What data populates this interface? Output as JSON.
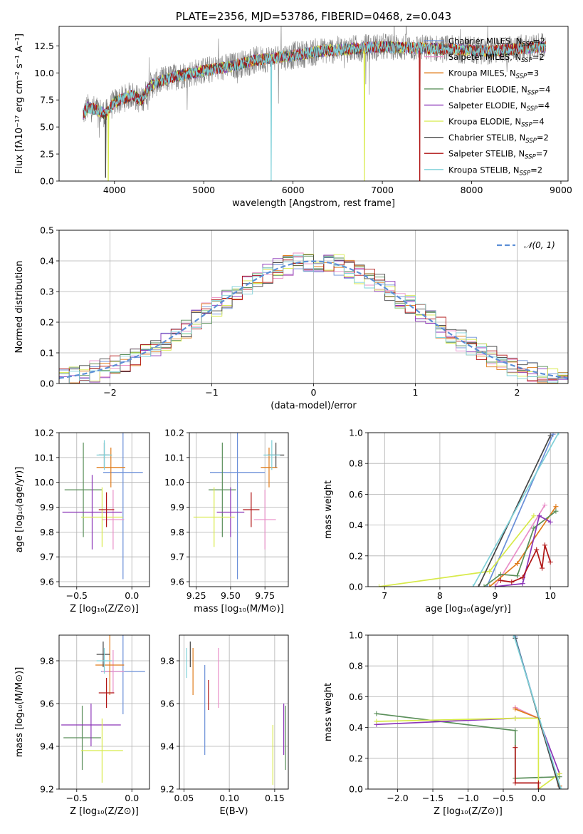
{
  "series_styles": [
    {
      "name": "Chabrier MILES",
      "nssp": "2",
      "color": "#6a8fd8"
    },
    {
      "name": "Salpeter MILES",
      "nssp": "2",
      "color": "#e98fc8"
    },
    {
      "name": "Kroupa MILES",
      "nssp": "3",
      "color": "#e07b1a"
    },
    {
      "name": "Chabrier ELODIE",
      "nssp": "4",
      "color": "#5a8f5a"
    },
    {
      "name": "Salpeter ELODIE",
      "nssp": "4",
      "color": "#8b35b8"
    },
    {
      "name": "Kroupa ELODIE",
      "nssp": "4",
      "color": "#d8ea4a"
    },
    {
      "name": "Chabrier STELIB",
      "nssp": "2",
      "color": "#444444"
    },
    {
      "name": "Salpeter STELIB",
      "nssp": "7",
      "color": "#b01515"
    },
    {
      "name": "Kroupa STELIB",
      "nssp": "2",
      "color": "#7ed0d8"
    }
  ],
  "chart_data": [
    {
      "type": "line",
      "id": "spectrum",
      "title": "PLATE=2356, MJD=53786, FIBERID=0468, z=0.043",
      "xlabel": "wavelength [Angstrom, rest frame]",
      "ylabel": "Flux [fλ10⁻¹⁷ erg cm⁻² s⁻¹ A⁻¹]",
      "xlim": [
        3380,
        9080
      ],
      "ylim": [
        0,
        14.3
      ],
      "xticks": [
        4000,
        5000,
        6000,
        7000,
        8000,
        9000
      ],
      "yticks": [
        0.0,
        2.5,
        5.0,
        7.5,
        10.0,
        12.5
      ],
      "grid": false,
      "legend": "top-right",
      "continuum": {
        "x": [
          3650,
          3700,
          3800,
          3900,
          4000,
          4100,
          4200,
          4300,
          4400,
          4500,
          4700,
          5000,
          5300,
          5600,
          6000,
          6300,
          6600,
          7000,
          7400,
          7800,
          8200,
          8600,
          8830
        ],
        "y": [
          6.2,
          6.8,
          6.6,
          6.2,
          7.3,
          7.6,
          8.0,
          7.4,
          8.8,
          9.2,
          9.7,
          10.2,
          10.6,
          11.2,
          11.6,
          12.0,
          12.2,
          12.4,
          12.3,
          12.2,
          12.0,
          12.3,
          12.4
        ]
      },
      "dips": [
        {
          "x": 5755,
          "y": 0,
          "series": 8
        },
        {
          "x": 6800,
          "y": 0,
          "series": 5
        },
        {
          "x": 7420,
          "y": 0,
          "series": 7
        },
        {
          "x": 3900,
          "y": 0.3,
          "series": 6
        },
        {
          "x": 3930,
          "y": 0.0,
          "series": 5
        }
      ]
    },
    {
      "type": "bar",
      "id": "residuals",
      "xlabel": "(data-model)/error",
      "ylabel": "Normed distribution",
      "xlim": [
        -2.5,
        2.5
      ],
      "ylim": [
        0,
        0.5
      ],
      "xticks": [
        -2,
        -1,
        0,
        1,
        2
      ],
      "yticks": [
        0.0,
        0.1,
        0.2,
        0.3,
        0.4,
        0.5
      ],
      "grid": true,
      "legend": "top-right",
      "legend_label": "𝒩(0, 1)",
      "bin_width": 0.1
    },
    {
      "type": "scatter",
      "id": "age-vs-Z",
      "xlabel": "Z [log₁₀(Z/Z⊙)]",
      "ylabel": "age  [log₁₀(age/yr)]",
      "xlim": [
        -0.66,
        0.16
      ],
      "ylim": [
        9.58,
        10.2
      ],
      "xticks": [
        -0.5,
        0.0
      ],
      "yticks": [
        9.6,
        9.7,
        9.8,
        9.9,
        10.0,
        10.1,
        10.2
      ],
      "points": [
        {
          "s": 0,
          "x": -0.08,
          "y": 10.04,
          "xerr": 0.18,
          "yerr": 0.43
        },
        {
          "s": 1,
          "x": -0.17,
          "y": 9.85,
          "xerr": 0.1,
          "yerr": 0.12
        },
        {
          "s": 2,
          "x": -0.19,
          "y": 10.06,
          "xerr": 0.13,
          "yerr": 0.08
        },
        {
          "s": 3,
          "x": -0.44,
          "y": 9.97,
          "xerr": 0.17,
          "yerr": 0.19
        },
        {
          "s": 4,
          "x": -0.36,
          "y": 9.88,
          "xerr": 0.27,
          "yerr": 0.15
        },
        {
          "s": 5,
          "x": -0.27,
          "y": 9.86,
          "xerr": 0.19,
          "yerr": 0.12
        },
        {
          "s": 6,
          "x": -0.25,
          "y": 10.11,
          "xerr": 0.05,
          "yerr": 0.05
        },
        {
          "s": 7,
          "x": -0.23,
          "y": 9.89,
          "xerr": 0.07,
          "yerr": 0.07
        },
        {
          "s": 8,
          "x": -0.25,
          "y": 10.11,
          "xerr": 0.07,
          "yerr": 0.06
        }
      ]
    },
    {
      "type": "scatter",
      "id": "age-vs-mass",
      "xlabel": "mass [log₁₀(M/M⊙)]",
      "ylabel": "",
      "xlim": [
        9.2,
        9.92
      ],
      "ylim": [
        9.58,
        10.2
      ],
      "xticks": [
        9.25,
        9.5,
        9.75
      ],
      "yticks": [
        9.6,
        9.7,
        9.8,
        9.9,
        10.0,
        10.1,
        10.2
      ],
      "points": [
        {
          "s": 0,
          "x": 9.55,
          "y": 10.04,
          "xerr": 0.2,
          "yerr": 0.43
        },
        {
          "s": 1,
          "x": 9.75,
          "y": 9.85,
          "xerr": 0.08,
          "yerr": 0.12
        },
        {
          "s": 2,
          "x": 9.78,
          "y": 10.06,
          "xerr": 0.06,
          "yerr": 0.08
        },
        {
          "s": 3,
          "x": 9.44,
          "y": 9.97,
          "xerr": 0.1,
          "yerr": 0.19
        },
        {
          "s": 4,
          "x": 9.5,
          "y": 9.88,
          "xerr": 0.1,
          "yerr": 0.1
        },
        {
          "s": 5,
          "x": 9.38,
          "y": 9.86,
          "xerr": 0.15,
          "yerr": 0.12
        },
        {
          "s": 6,
          "x": 9.83,
          "y": 10.11,
          "xerr": 0.06,
          "yerr": 0.05
        },
        {
          "s": 7,
          "x": 9.65,
          "y": 9.89,
          "xerr": 0.06,
          "yerr": 0.07
        },
        {
          "s": 8,
          "x": 9.8,
          "y": 10.11,
          "xerr": 0.06,
          "yerr": 0.06
        }
      ]
    },
    {
      "type": "line",
      "id": "weight-vs-age",
      "xlabel": "age  [log₁₀(age/yr)]",
      "ylabel": "mass weight",
      "xlim": [
        6.7,
        10.32
      ],
      "ylim": [
        0,
        1.0
      ],
      "xticks": [
        7,
        8,
        9,
        10
      ],
      "yticks": [
        0.0,
        0.2,
        0.4,
        0.6,
        0.8,
        1.0
      ],
      "grid": true,
      "lines": [
        {
          "s": 0,
          "x": [
            8.85,
            10.05
          ],
          "y": [
            0.0,
            0.99
          ]
        },
        {
          "s": 1,
          "x": [
            9.0,
            9.9
          ],
          "y": [
            0.0,
            0.53
          ]
        },
        {
          "s": 2,
          "x": [
            8.9,
            9.4,
            10.1
          ],
          "y": [
            0.0,
            0.15,
            0.52
          ]
        },
        {
          "s": 3,
          "x": [
            8.8,
            9.1,
            9.4,
            9.7,
            10.1
          ],
          "y": [
            0.0,
            0.08,
            0.07,
            0.38,
            0.49
          ]
        },
        {
          "s": 4,
          "x": [
            9.0,
            9.5,
            9.8,
            10.0
          ],
          "y": [
            0.0,
            0.02,
            0.46,
            0.42
          ]
        },
        {
          "s": 5,
          "x": [
            6.9,
            8.9,
            9.7
          ],
          "y": [
            0.0,
            0.1,
            0.46
          ]
        },
        {
          "s": 6,
          "x": [
            8.7,
            10.0
          ],
          "y": [
            0.0,
            0.98
          ]
        },
        {
          "s": 7,
          "x": [
            9.1,
            9.3,
            9.5,
            9.75,
            9.85,
            9.9,
            10.0
          ],
          "y": [
            0.04,
            0.03,
            0.06,
            0.24,
            0.12,
            0.27,
            0.16
          ]
        },
        {
          "s": 8,
          "x": [
            8.6,
            10.15
          ],
          "y": [
            0.0,
            1.0
          ]
        }
      ]
    },
    {
      "type": "scatter",
      "id": "mass-vs-Z",
      "xlabel": "Z [log₁₀(Z/Z⊙)]",
      "ylabel": "mass [log₁₀(M/M⊙)]",
      "xlim": [
        -0.66,
        0.16
      ],
      "ylim": [
        9.2,
        9.92
      ],
      "xticks": [
        -0.5,
        0.0
      ],
      "yticks": [
        9.2,
        9.4,
        9.6,
        9.8
      ],
      "points": [
        {
          "s": 0,
          "x": -0.08,
          "y": 9.75,
          "xerr": 0.2,
          "yerr": 0.2
        },
        {
          "s": 1,
          "x": -0.17,
          "y": 9.75,
          "xerr": 0.1,
          "yerr": 0.1
        },
        {
          "s": 2,
          "x": -0.2,
          "y": 9.78,
          "xerr": 0.13,
          "yerr": 0.14
        },
        {
          "s": 3,
          "x": -0.45,
          "y": 9.44,
          "xerr": 0.17,
          "yerr": 0.15
        },
        {
          "s": 4,
          "x": -0.37,
          "y": 9.5,
          "xerr": 0.27,
          "yerr": 0.1
        },
        {
          "s": 5,
          "x": -0.27,
          "y": 9.38,
          "xerr": 0.19,
          "yerr": 0.15
        },
        {
          "s": 6,
          "x": -0.26,
          "y": 9.83,
          "xerr": 0.06,
          "yerr": 0.06
        },
        {
          "s": 7,
          "x": -0.23,
          "y": 9.65,
          "xerr": 0.07,
          "yerr": 0.07
        },
        {
          "s": 8,
          "x": -0.25,
          "y": 9.8,
          "xerr": 0.07,
          "yerr": 0.06
        }
      ]
    },
    {
      "type": "scatter",
      "id": "mass-vs-ebv",
      "xlabel": "E(B-V)",
      "ylabel": "",
      "xlim": [
        0.045,
        0.165
      ],
      "ylim": [
        9.2,
        9.92
      ],
      "xticks": [
        0.05,
        0.1,
        0.15
      ],
      "yticks": [
        9.2,
        9.4,
        9.6,
        9.8
      ],
      "points": [
        {
          "s": 0,
          "x": 0.073,
          "y": 9.57,
          "xerr": 0.0,
          "yerr": 0.21
        },
        {
          "s": 1,
          "x": 0.088,
          "y": 9.72,
          "xerr": 0.0,
          "yerr": 0.14
        },
        {
          "s": 2,
          "x": 0.06,
          "y": 9.75,
          "xerr": 0.0,
          "yerr": 0.11
        },
        {
          "s": 3,
          "x": 0.162,
          "y": 9.44,
          "xerr": 0.0,
          "yerr": 0.15
        },
        {
          "s": 4,
          "x": 0.16,
          "y": 9.48,
          "xerr": 0.0,
          "yerr": 0.12
        },
        {
          "s": 5,
          "x": 0.148,
          "y": 9.36,
          "xerr": 0.0,
          "yerr": 0.14
        },
        {
          "s": 6,
          "x": 0.057,
          "y": 9.83,
          "xerr": 0.0,
          "yerr": 0.06
        },
        {
          "s": 7,
          "x": 0.077,
          "y": 9.64,
          "xerr": 0.0,
          "yerr": 0.07
        },
        {
          "s": 8,
          "x": 0.053,
          "y": 9.79,
          "xerr": 0.0,
          "yerr": 0.07
        }
      ]
    },
    {
      "type": "line",
      "id": "weight-vs-Z",
      "xlabel": "Z [log₁₀(Z/Z⊙)]",
      "ylabel": "mass weight",
      "xlim": [
        -2.42,
        0.42
      ],
      "ylim": [
        0,
        1.0
      ],
      "xticks": [
        -2.0,
        -1.5,
        -1.0,
        -0.5,
        0.0
      ],
      "yticks": [
        0.0,
        0.2,
        0.4,
        0.6,
        0.8,
        1.0
      ],
      "grid": true,
      "lines": [
        {
          "s": 0,
          "x": [
            -0.33,
            0.3
          ],
          "y": [
            0.99,
            0.0
          ]
        },
        {
          "s": 1,
          "x": [
            -0.33,
            0.0,
            0.3
          ],
          "y": [
            0.53,
            0.46,
            0.02
          ]
        },
        {
          "s": 2,
          "x": [
            -0.33,
            0.0,
            0.3
          ],
          "y": [
            0.52,
            0.46,
            0.02
          ]
        },
        {
          "s": 3,
          "x": [
            -2.3,
            -0.33,
            -0.33,
            0.3
          ],
          "y": [
            0.49,
            0.38,
            0.07,
            0.08
          ]
        },
        {
          "s": 4,
          "x": [
            -2.3,
            -0.33,
            0.0,
            0.3
          ],
          "y": [
            0.42,
            0.46,
            0.46,
            0.1
          ]
        },
        {
          "s": 5,
          "x": [
            -2.3,
            -0.33,
            0.0,
            0.0,
            0.3
          ],
          "y": [
            0.44,
            0.46,
            0.46,
            0.0,
            0.1
          ]
        },
        {
          "s": 6,
          "x": [
            -0.33,
            0.3
          ],
          "y": [
            0.98,
            0.0
          ]
        },
        {
          "s": 7,
          "x": [
            -0.33,
            -0.33,
            0.0,
            0.0
          ],
          "y": [
            0.27,
            0.04,
            0.04,
            0.0
          ]
        },
        {
          "s": 8,
          "x": [
            -0.35,
            0.32
          ],
          "y": [
            1.0,
            0.0
          ]
        }
      ]
    }
  ]
}
